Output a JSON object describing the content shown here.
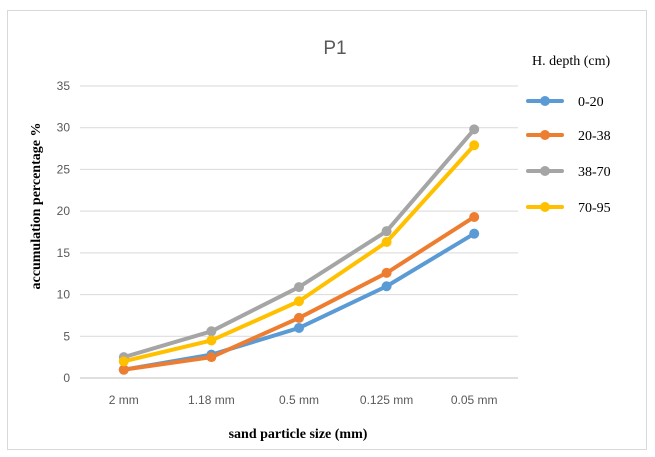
{
  "chart_data": {
    "type": "line",
    "title": "P1",
    "xlabel": "sand particle size (mm)",
    "ylabel": "accumulation percentage %",
    "categories": [
      "2 mm",
      "1.18 mm",
      "0.5 mm",
      "0.125 mm",
      "0.05 mm"
    ],
    "ylim": [
      0,
      35
    ],
    "yticks": [
      0,
      5,
      10,
      15,
      20,
      25,
      30,
      35
    ],
    "grid": "horizontal",
    "legend": {
      "title": "H. depth (cm)",
      "placement": "right"
    },
    "series": [
      {
        "name": "0-20",
        "color": "#5B9BD5",
        "values": [
          1.0,
          2.8,
          6.0,
          11.0,
          17.3
        ]
      },
      {
        "name": "20-38",
        "color": "#ED7D31",
        "values": [
          1.0,
          2.5,
          7.2,
          12.6,
          19.3
        ]
      },
      {
        "name": "38-70",
        "color": "#A5A5A5",
        "values": [
          2.5,
          5.6,
          10.9,
          17.6,
          29.8
        ]
      },
      {
        "name": "70-95",
        "color": "#FFC000",
        "values": [
          2.0,
          4.5,
          9.2,
          16.3,
          27.9
        ]
      }
    ]
  }
}
